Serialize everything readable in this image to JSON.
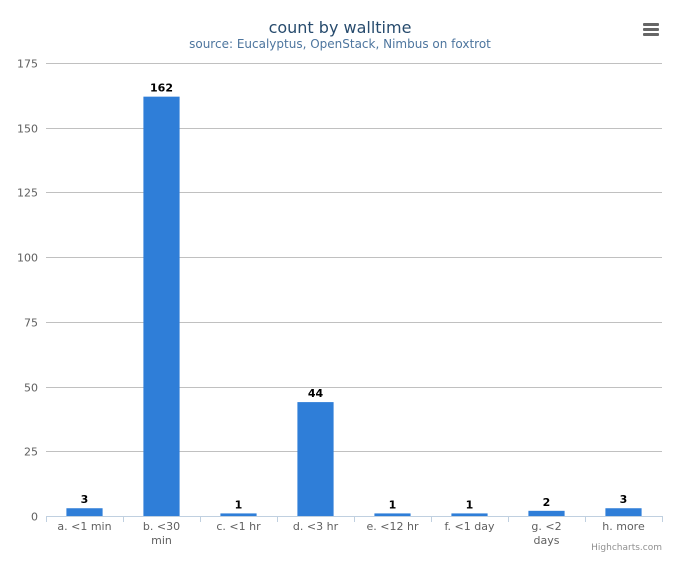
{
  "chart_data": {
    "type": "bar",
    "title": "count by walltime",
    "subtitle": "source: Eucalyptus, OpenStack, Nimbus on foxtrot",
    "categories": [
      "a. <1 min",
      "b. <30 min",
      "c. <1 hr",
      "d. <3 hr",
      "e. <12 hr",
      "f. <1 day",
      "g. <2 days",
      "h. more"
    ],
    "category_lines": [
      [
        "a. <1 min"
      ],
      [
        "b. <30",
        "min"
      ],
      [
        "c. <1 hr"
      ],
      [
        "d. <3 hr"
      ],
      [
        "e. <12 hr"
      ],
      [
        "f. <1 day"
      ],
      [
        "g. <2",
        "days"
      ],
      [
        "h. more"
      ]
    ],
    "values": [
      3,
      162,
      1,
      44,
      1,
      1,
      2,
      3
    ],
    "ylim": [
      0,
      175
    ],
    "yticks": [
      0,
      25,
      50,
      75,
      100,
      125,
      150,
      175
    ],
    "xlabel": "",
    "ylabel": "",
    "grid": true,
    "legend": "none",
    "data_labels": true
  },
  "colors": {
    "bar": "#2f7ed8",
    "title": "#274b6d",
    "subtitle": "#4d759e",
    "grid": "#c0c0c0",
    "axis_line": "#c0d0e0",
    "tick_label": "#606060",
    "data_label": "#000000"
  },
  "exporting": {
    "menu_icon": "hamburger-menu-icon"
  },
  "credits": "Highcharts.com"
}
